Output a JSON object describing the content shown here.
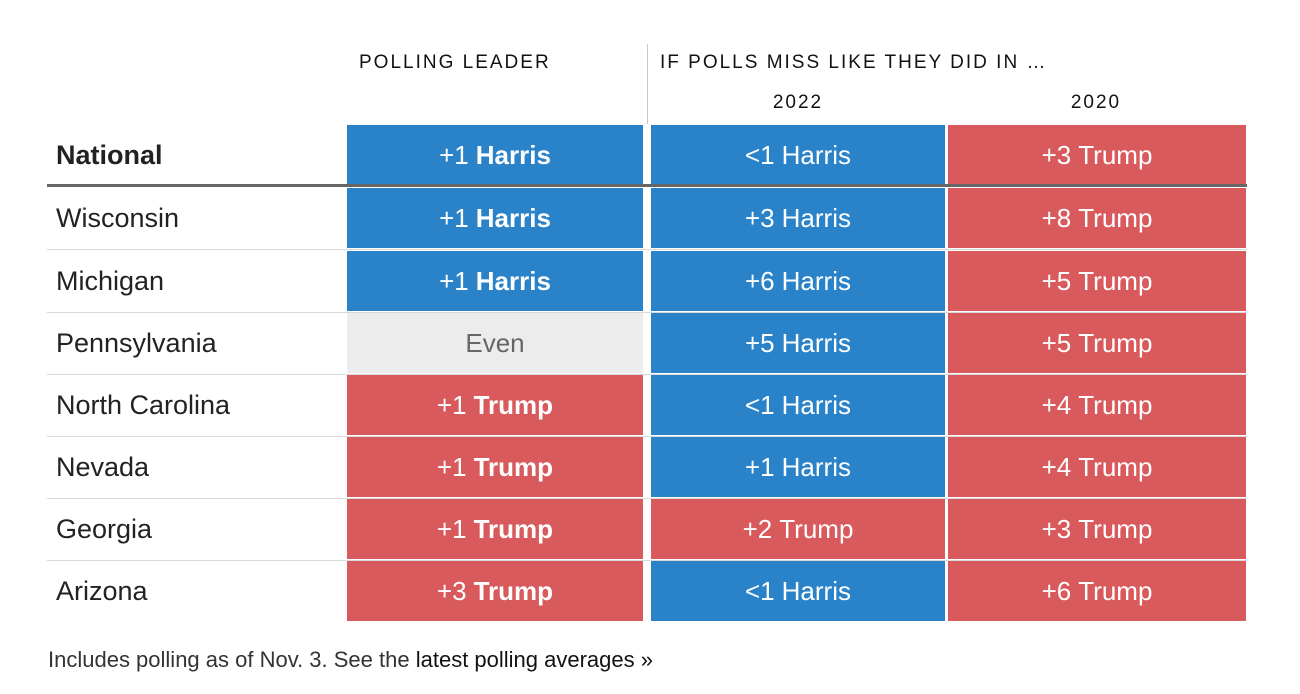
{
  "header": {
    "polling_leader": "POLLING LEADER",
    "if_polls_miss": "IF POLLS MISS LIKE THEY DID IN …",
    "year_a": "2022",
    "year_b": "2020"
  },
  "colors": {
    "harris": "#2a83c9",
    "trump": "#d95a5c",
    "even": "#ececec"
  },
  "chart_data": {
    "type": "table",
    "columns": [
      "POLLING LEADER",
      "2022",
      "2020"
    ],
    "rows": [
      {
        "state": "National",
        "bold": true,
        "cells": [
          {
            "margin": "+1",
            "candidate": "Harris",
            "party": "harris"
          },
          {
            "margin": "<1",
            "candidate": "Harris",
            "party": "harris"
          },
          {
            "margin": "+3",
            "candidate": "Trump",
            "party": "trump"
          }
        ]
      },
      {
        "state": "Wisconsin",
        "cells": [
          {
            "margin": "+1",
            "candidate": "Harris",
            "party": "harris"
          },
          {
            "margin": "+3",
            "candidate": "Harris",
            "party": "harris"
          },
          {
            "margin": "+8",
            "candidate": "Trump",
            "party": "trump"
          }
        ]
      },
      {
        "state": "Michigan",
        "cells": [
          {
            "margin": "+1",
            "candidate": "Harris",
            "party": "harris"
          },
          {
            "margin": "+6",
            "candidate": "Harris",
            "party": "harris"
          },
          {
            "margin": "+5",
            "candidate": "Trump",
            "party": "trump"
          }
        ]
      },
      {
        "state": "Pennsylvania",
        "cells": [
          {
            "margin": "",
            "candidate": "Even",
            "party": "even"
          },
          {
            "margin": "+5",
            "candidate": "Harris",
            "party": "harris"
          },
          {
            "margin": "+5",
            "candidate": "Trump",
            "party": "trump"
          }
        ]
      },
      {
        "state": "North Carolina",
        "cells": [
          {
            "margin": "+1",
            "candidate": "Trump",
            "party": "trump"
          },
          {
            "margin": "<1",
            "candidate": "Harris",
            "party": "harris"
          },
          {
            "margin": "+4",
            "candidate": "Trump",
            "party": "trump"
          }
        ]
      },
      {
        "state": "Nevada",
        "cells": [
          {
            "margin": "+1",
            "candidate": "Trump",
            "party": "trump"
          },
          {
            "margin": "+1",
            "candidate": "Harris",
            "party": "harris"
          },
          {
            "margin": "+4",
            "candidate": "Trump",
            "party": "trump"
          }
        ]
      },
      {
        "state": "Georgia",
        "cells": [
          {
            "margin": "+1",
            "candidate": "Trump",
            "party": "trump"
          },
          {
            "margin": "+2",
            "candidate": "Trump",
            "party": "trump"
          },
          {
            "margin": "+3",
            "candidate": "Trump",
            "party": "trump"
          }
        ]
      },
      {
        "state": "Arizona",
        "cells": [
          {
            "margin": "+3",
            "candidate": "Trump",
            "party": "trump"
          },
          {
            "margin": "<1",
            "candidate": "Harris",
            "party": "harris"
          },
          {
            "margin": "+6",
            "candidate": "Trump",
            "party": "trump"
          }
        ]
      }
    ]
  },
  "footnote": {
    "text": "Includes polling as of Nov. 3. See the ",
    "link": "latest polling averages »"
  }
}
